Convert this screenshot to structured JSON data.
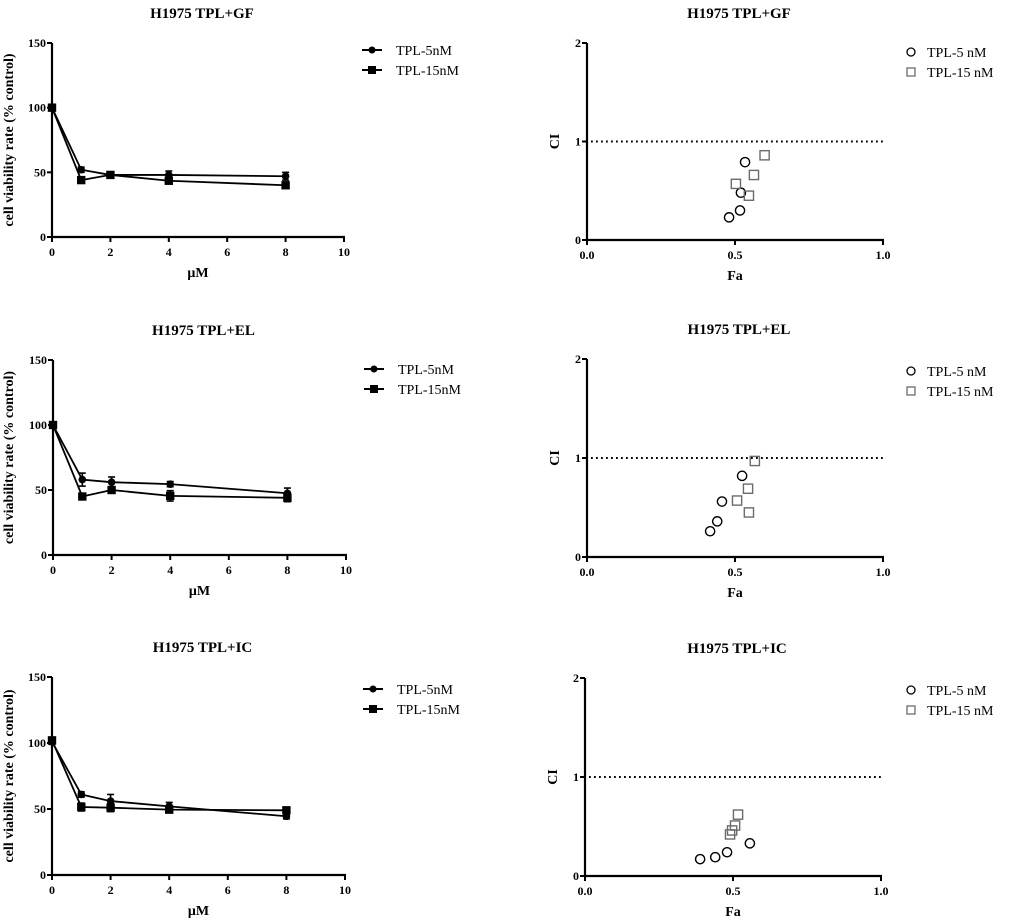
{
  "chart_data": [
    {
      "id": "viability-gf",
      "type": "line",
      "title": "H1975   TPL+GF",
      "xlabel": "μM",
      "ylabel": "cell viability rate (% control)",
      "xlim": [
        0,
        10
      ],
      "ylim": [
        0,
        150
      ],
      "xticks": [
        "0",
        "2",
        "4",
        "6",
        "8",
        "10"
      ],
      "yticks": [
        "0",
        "50",
        "100",
        "150"
      ],
      "legend_position": "top-right-outside",
      "x": [
        0,
        1,
        2,
        4,
        8
      ],
      "series": [
        {
          "name": "TPL-5nM",
          "marker": "circle",
          "values": [
            100,
            52,
            48,
            48,
            47
          ],
          "err": [
            2,
            2,
            2,
            3,
            3
          ]
        },
        {
          "name": "TPL-15nM",
          "marker": "square",
          "values": [
            100,
            44,
            48,
            43.5,
            40
          ],
          "err": [
            2,
            2,
            2,
            2,
            2
          ]
        }
      ]
    },
    {
      "id": "ci-gf",
      "type": "scatter",
      "title": "H1975   TPL+GF",
      "xlabel": "Fa",
      "ylabel": "CI",
      "xlim": [
        0,
        1
      ],
      "ylim": [
        0,
        2
      ],
      "xticks": [
        "0.0",
        "0.5",
        "1.0"
      ],
      "yticks": [
        "0",
        "1",
        "2"
      ],
      "reference_line": 1,
      "legend_position": "top-right",
      "series": [
        {
          "name": "TPL-5 nM",
          "marker": "open-circle",
          "points": [
            [
              0.48,
              0.23
            ],
            [
              0.517,
              0.3
            ],
            [
              0.52,
              0.48
            ],
            [
              0.534,
              0.79
            ]
          ]
        },
        {
          "name": "TPL-15 nM",
          "marker": "open-square",
          "points": [
            [
              0.503,
              0.57
            ],
            [
              0.547,
              0.45
            ],
            [
              0.564,
              0.66
            ],
            [
              0.6,
              0.86
            ]
          ]
        }
      ]
    },
    {
      "id": "viability-el",
      "type": "line",
      "title": "H1975   TPL+EL",
      "xlabel": "μM",
      "ylabel": "cell viability rate (% control)",
      "xlim": [
        0,
        10
      ],
      "ylim": [
        0,
        150
      ],
      "xticks": [
        "0",
        "2",
        "4",
        "6",
        "8",
        "10"
      ],
      "yticks": [
        "0",
        "50",
        "100",
        "150"
      ],
      "legend_position": "top-right-outside",
      "x": [
        0,
        1,
        2,
        4,
        8
      ],
      "series": [
        {
          "name": "TPL-5nM",
          "marker": "circle",
          "values": [
            100,
            58,
            56,
            54.5,
            47.5
          ],
          "err": [
            2,
            5,
            4,
            2,
            4
          ]
        },
        {
          "name": "TPL-15nM",
          "marker": "square",
          "values": [
            100,
            45,
            50,
            45.5,
            44
          ],
          "err": [
            2,
            2,
            2,
            4,
            3
          ]
        }
      ]
    },
    {
      "id": "ci-el",
      "type": "scatter",
      "title": "H1975   TPL+EL",
      "xlabel": "Fa",
      "ylabel": "CI",
      "xlim": [
        0,
        1
      ],
      "ylim": [
        0,
        2
      ],
      "xticks": [
        "0.0",
        "0.5",
        "1.0"
      ],
      "yticks": [
        "0",
        "1",
        "2"
      ],
      "reference_line": 1,
      "legend_position": "top-right",
      "series": [
        {
          "name": "TPL-5 nM",
          "marker": "open-circle",
          "points": [
            [
              0.416,
              0.26
            ],
            [
              0.44,
              0.36
            ],
            [
              0.456,
              0.56
            ],
            [
              0.524,
              0.82
            ]
          ]
        },
        {
          "name": "TPL-15 nM",
          "marker": "open-square",
          "points": [
            [
              0.507,
              0.57
            ],
            [
              0.547,
              0.45
            ],
            [
              0.544,
              0.69
            ],
            [
              0.567,
              0.97
            ]
          ]
        }
      ]
    },
    {
      "id": "viability-ic",
      "type": "line",
      "title": "H1975   TPL+IC",
      "xlabel": "μM",
      "ylabel": "cell viability rate (% control)",
      "xlim": [
        0,
        10
      ],
      "ylim": [
        0,
        150
      ],
      "xticks": [
        "0",
        "2",
        "4",
        "6",
        "8",
        "10"
      ],
      "yticks": [
        "0",
        "50",
        "100",
        "150"
      ],
      "legend_position": "top-right-outside",
      "x": [
        0,
        1,
        2,
        4,
        8
      ],
      "series": [
        {
          "name": "TPL-5nM",
          "marker": "circle",
          "values": [
            101,
            61,
            56,
            52,
            44.5
          ],
          "err": [
            2,
            2,
            5,
            3,
            2
          ]
        },
        {
          "name": "TPL-15nM",
          "marker": "square",
          "values": [
            102,
            51.5,
            51,
            49.5,
            49
          ],
          "err": [
            2,
            3,
            3,
            2,
            2
          ]
        }
      ]
    },
    {
      "id": "ci-ic",
      "type": "scatter",
      "title": "H1975   TPL+IC",
      "xlabel": "Fa",
      "ylabel": "CI",
      "xlim": [
        0,
        1
      ],
      "ylim": [
        0,
        2
      ],
      "xticks": [
        "0.0",
        "0.5",
        "1.0"
      ],
      "yticks": [
        "0",
        "1",
        "2"
      ],
      "reference_line": 1,
      "legend_position": "top-right",
      "series": [
        {
          "name": "TPL-5 nM",
          "marker": "open-circle",
          "points": [
            [
              0.389,
              0.17
            ],
            [
              0.44,
              0.19
            ],
            [
              0.48,
              0.24
            ],
            [
              0.557,
              0.33
            ]
          ]
        },
        {
          "name": "TPL-15 nM",
          "marker": "open-square",
          "points": [
            [
              0.49,
              0.42
            ],
            [
              0.497,
              0.46
            ],
            [
              0.507,
              0.51
            ],
            [
              0.517,
              0.62
            ]
          ]
        }
      ]
    }
  ],
  "colors": {
    "line": "#000000",
    "open_circle": "#000000",
    "open_square": "#6b6b6b"
  }
}
